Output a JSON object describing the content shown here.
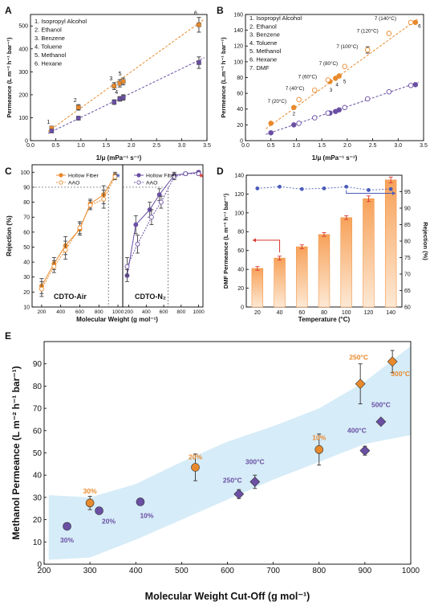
{
  "colors": {
    "orange": "#e8892b",
    "purple": "#6a4fa3",
    "blue_marker": "#4a5bb8",
    "red_marker": "#d9352c",
    "band": "#d6ecf8",
    "bar_top": "#f7a25a",
    "bar_bottom": "#fde9d5"
  },
  "chart_data": [
    {
      "panel": "A",
      "type": "scatter",
      "xlabel": "1/μ (mPa⁻¹ s⁻¹)",
      "ylabel": "Permeance (L m⁻² h⁻¹ bar⁻¹)",
      "xlim": [
        0.0,
        3.5
      ],
      "ylim": [
        0,
        550
      ],
      "xticks": [
        "0.0",
        "0.5",
        "1.0",
        "1.5",
        "2.0",
        "2.5",
        "3.0",
        "3.5"
      ],
      "yticks": [
        "0",
        "100",
        "200",
        "300",
        "400",
        "500"
      ],
      "legend": [
        "1. Isopropyl Alcohol",
        "2. Ethanol",
        "3. Benzene",
        "4. Toluene",
        "5. Methanol",
        "6. Hexane"
      ],
      "series": [
        {
          "color": "orange",
          "points": [
            {
              "x": 0.42,
              "y": 55,
              "err": 8,
              "label": "1"
            },
            {
              "x": 0.95,
              "y": 145,
              "err": 12,
              "label": "2"
            },
            {
              "x": 1.66,
              "y": 238,
              "err": 15,
              "label": "3"
            },
            {
              "x": 1.77,
              "y": 250,
              "err": 16,
              "label": ""
            },
            {
              "x": 1.84,
              "y": 258,
              "err": 15,
              "label": "5"
            },
            {
              "x": 3.34,
              "y": 505,
              "err": 32,
              "label": "6"
            }
          ],
          "fit": [
            [
              0.35,
              40
            ],
            [
              3.45,
              530
            ]
          ]
        },
        {
          "color": "purple",
          "points": [
            {
              "x": 0.42,
              "y": 42,
              "err": 5,
              "label": ""
            },
            {
              "x": 0.95,
              "y": 98,
              "err": 8,
              "label": ""
            },
            {
              "x": 1.66,
              "y": 168,
              "err": 10,
              "label": ""
            },
            {
              "x": 1.77,
              "y": 182,
              "err": 10,
              "label": "4"
            },
            {
              "x": 1.84,
              "y": 188,
              "err": 12,
              "label": ""
            },
            {
              "x": 3.34,
              "y": 340,
              "err": 25,
              "label": ""
            }
          ],
          "fit": [
            [
              0.35,
              32
            ],
            [
              3.45,
              362
            ]
          ]
        }
      ]
    },
    {
      "panel": "B",
      "type": "scatter",
      "xlabel": "1/μ (mPa⁻¹ s⁻¹)",
      "ylabel": "Permeance (L.m⁻² h⁻¹ bar⁻¹)",
      "xlim": [
        0.0,
        3.5
      ],
      "ylim": [
        0,
        160
      ],
      "xticks": [
        "0.0",
        "0.5",
        "1.0",
        "1.5",
        "2.0",
        "2.5",
        "3.0",
        "3.5"
      ],
      "yticks": [
        "0",
        "20",
        "40",
        "60",
        "80",
        "100",
        "120",
        "140",
        "160"
      ],
      "legend": [
        "1. Isopropyl Alcohol",
        "2. Ethanol",
        "3. Benzene",
        "4. Toluene",
        "5. Methanol",
        "6. Hexane",
        "7. DMF"
      ],
      "annotations": [
        {
          "text": "7 (20°C)",
          "x": 0.62,
          "y": 48
        },
        {
          "text": "7 (40°C)",
          "x": 0.97,
          "y": 64
        },
        {
          "text": "7 (60°C)",
          "x": 1.22,
          "y": 79
        },
        {
          "text": "7 (80°C)",
          "x": 1.63,
          "y": 96
        },
        {
          "text": "7 (100°C)",
          "x": 2.0,
          "y": 117
        },
        {
          "text": "7 (120°C)",
          "x": 2.4,
          "y": 137
        },
        {
          "text": "7 (140°C)",
          "x": 2.75,
          "y": 153
        },
        {
          "text": "2",
          "x": 0.95,
          "y": 32
        },
        {
          "text": "3",
          "x": 1.68,
          "y": 62
        },
        {
          "text": "4",
          "x": 1.8,
          "y": 69
        },
        {
          "text": "5",
          "x": 1.95,
          "y": 73
        },
        {
          "text": "6",
          "x": 3.42,
          "y": 143
        }
      ],
      "series": [
        {
          "color": "orange",
          "filled": true,
          "points": [
            {
              "x": 0.5,
              "y": 22
            },
            {
              "x": 0.95,
              "y": 42
            },
            {
              "x": 1.66,
              "y": 75
            },
            {
              "x": 1.77,
              "y": 79
            },
            {
              "x": 1.84,
              "y": 82
            },
            {
              "x": 3.34,
              "y": 150
            }
          ]
        },
        {
          "color": "orange",
          "filled": false,
          "points": [
            {
              "x": 1.05,
              "y": 52
            },
            {
              "x": 1.36,
              "y": 64
            },
            {
              "x": 1.62,
              "y": 77
            },
            {
              "x": 1.95,
              "y": 94
            },
            {
              "x": 2.4,
              "y": 115,
              "err": 4
            },
            {
              "x": 2.82,
              "y": 136
            },
            {
              "x": 3.25,
              "y": 150
            }
          ],
          "fit": [
            [
              0.4,
              15
            ],
            [
              3.4,
              155
            ]
          ]
        },
        {
          "color": "purple",
          "filled": true,
          "points": [
            {
              "x": 0.5,
              "y": 10
            },
            {
              "x": 0.95,
              "y": 20
            },
            {
              "x": 1.66,
              "y": 35
            },
            {
              "x": 1.77,
              "y": 37
            },
            {
              "x": 1.84,
              "y": 39
            },
            {
              "x": 3.34,
              "y": 71
            }
          ]
        },
        {
          "color": "purple",
          "filled": false,
          "points": [
            {
              "x": 1.05,
              "y": 22
            },
            {
              "x": 1.36,
              "y": 29
            },
            {
              "x": 1.62,
              "y": 35
            },
            {
              "x": 1.95,
              "y": 42
            },
            {
              "x": 2.4,
              "y": 53
            },
            {
              "x": 2.82,
              "y": 62
            },
            {
              "x": 3.25,
              "y": 70
            }
          ],
          "fit": [
            [
              0.4,
              8
            ],
            [
              3.4,
              74
            ]
          ]
        }
      ]
    },
    {
      "panel": "C",
      "type": "line",
      "xlabel": "Molecular Weight (g mol⁻¹)",
      "ylabel": "Rejection (%)",
      "ylim": [
        10,
        105
      ],
      "yticks": [
        "10",
        "20",
        "30",
        "40",
        "50",
        "60",
        "70",
        "80",
        "90",
        "100"
      ],
      "left": {
        "xlim": [
          100,
          1050
        ],
        "xticks": [
          "200",
          "400",
          "600",
          "800",
          "1000"
        ],
        "label": "CDTO-Air",
        "cutoff_x": 900,
        "legend": [
          "Hollow Fiber",
          "AAO"
        ],
        "series": [
          {
            "name": "Hollow Fiber",
            "color": "orange",
            "filled": true,
            "x": [
              200,
              330,
              450,
              600,
              710,
              850,
              970
            ],
            "y": [
              24,
              39,
              51,
              62,
              79,
              85,
              98
            ],
            "err": [
              5,
              4,
              6,
              4,
              3,
              6,
              2
            ]
          },
          {
            "name": "AAO",
            "color": "orange",
            "filled": false,
            "x": [
              200,
              330,
              450,
              600,
              710,
              850,
              970
            ],
            "y": [
              22,
              37,
              48,
              63,
              78,
              82,
              97
            ],
            "err": [
              5,
              4,
              6,
              4,
              3,
              6,
              2
            ]
          }
        ]
      },
      "right": {
        "xlim": [
          130,
          1050
        ],
        "xticks": [
          "200",
          "400",
          "600",
          "800",
          "1000"
        ],
        "label": "CDTO-N₂",
        "cutoff_x": 650,
        "legend": [
          "Hollow Fiber",
          "AAO"
        ],
        "series": [
          {
            "name": "Hollow Fiber",
            "color": "purple",
            "filled": true,
            "x": [
              180,
              280,
              440,
              550,
              720,
              850,
              1000
            ],
            "y": [
              31,
              65,
              75,
              85,
              98,
              99,
              100
            ],
            "err": [
              4,
              6,
              5,
              4,
              2,
              1,
              1
            ]
          },
          {
            "name": "AAO",
            "color": "purple",
            "filled": false,
            "x": [
              180,
              300,
              460,
              570,
              720,
              850,
              1000
            ],
            "y": [
              37,
              52,
              70,
              80,
              97,
              99,
              99
            ],
            "err": [
              6,
              6,
              5,
              4,
              2,
              1,
              1
            ]
          }
        ]
      }
    },
    {
      "panel": "D",
      "type": "bar",
      "xlabel": "Temperature (°C)",
      "ylabel": "DMF Permeance (L m⁻² h⁻¹ bar⁻¹)",
      "ylabel_right": "Rejection (%)",
      "categories": [
        "20",
        "40",
        "60",
        "80",
        "100",
        "120",
        "140"
      ],
      "ylim": [
        0,
        140
      ],
      "yticks": [
        "0",
        "20",
        "40",
        "60",
        "80",
        "100",
        "120",
        "140"
      ],
      "ylim_right": [
        60,
        100
      ],
      "yticks_right": [
        "60",
        "65",
        "70",
        "75",
        "80",
        "85",
        "90",
        "95"
      ],
      "values": [
        41,
        52,
        64,
        77,
        95,
        115,
        135
      ],
      "errors": [
        2,
        2,
        2,
        2,
        2,
        3,
        3
      ],
      "rejection": [
        96,
        96.5,
        95.8,
        96,
        96.5,
        95.5,
        95.8
      ]
    },
    {
      "panel": "E",
      "type": "scatter",
      "xlabel": "Molecular Weight Cut-Off (g mol⁻¹)",
      "ylabel": "Methanol Permeance (L m⁻² h⁻¹ bar⁻¹)",
      "xlim": [
        200,
        1000
      ],
      "ylim": [
        0,
        100
      ],
      "xticks": [
        "200",
        "300",
        "400",
        "500",
        "600",
        "700",
        "800",
        "900",
        "1000"
      ],
      "yticks": [
        "0",
        "10",
        "20",
        "30",
        "40",
        "50",
        "60",
        "70",
        "80",
        "90"
      ],
      "series": [
        {
          "marker": "circle",
          "color": "orange",
          "points": [
            {
              "x": 300,
              "y": 27.5,
              "err": 3,
              "label": "30%"
            },
            {
              "x": 530,
              "y": 43.5,
              "err": 6,
              "label": "20%"
            },
            {
              "x": 800,
              "y": 51.5,
              "err": 7,
              "label": "10%"
            }
          ]
        },
        {
          "marker": "diamond",
          "color": "orange",
          "points": [
            {
              "x": 890,
              "y": 81,
              "err": 9,
              "label": "250°C"
            },
            {
              "x": 960,
              "y": 91,
              "err": 5,
              "label": "300°C"
            }
          ]
        },
        {
          "marker": "circle",
          "color": "purple",
          "points": [
            {
              "x": 250,
              "y": 17,
              "label": "30%"
            },
            {
              "x": 320,
              "y": 24,
              "label": "20%"
            },
            {
              "x": 410,
              "y": 28,
              "label": "10%"
            }
          ]
        },
        {
          "marker": "diamond",
          "color": "purple",
          "points": [
            {
              "x": 625,
              "y": 31.5,
              "err": 2,
              "label": "250°C"
            },
            {
              "x": 660,
              "y": 37,
              "err": 3,
              "label": "300°C"
            },
            {
              "x": 900,
              "y": 51,
              "err": 2,
              "label": "400°C"
            },
            {
              "x": 935,
              "y": 64,
              "label": "500°C"
            }
          ]
        }
      ]
    }
  ]
}
